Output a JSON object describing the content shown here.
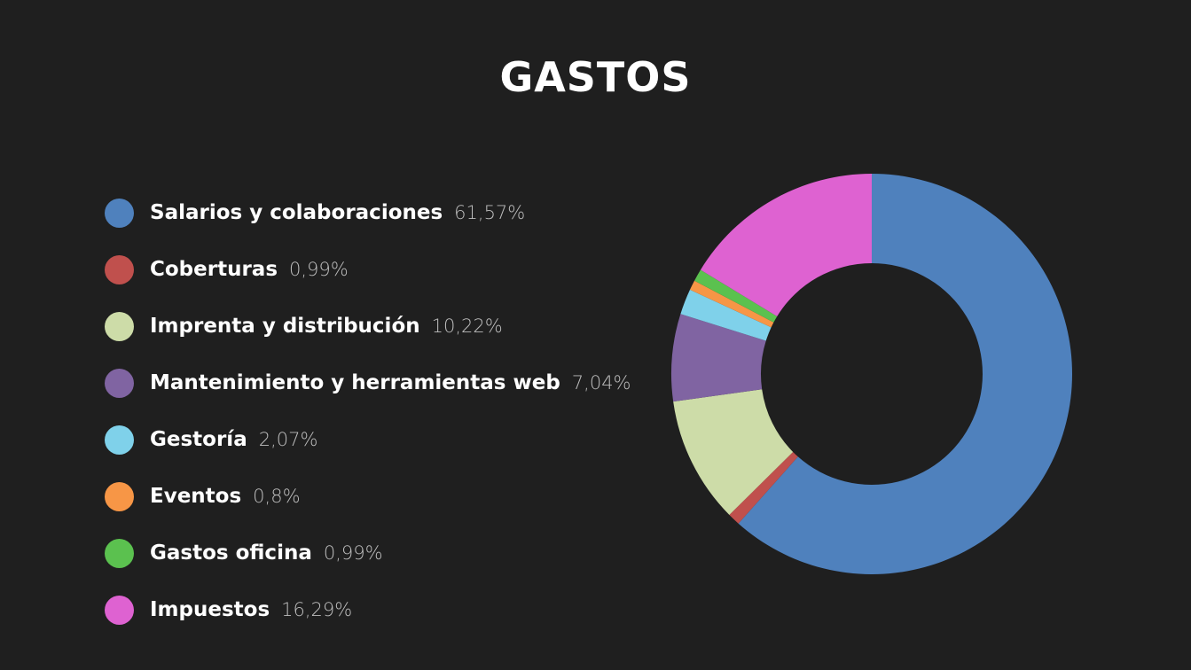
{
  "chart_data": {
    "type": "pie",
    "title": "GASTOS",
    "donut": true,
    "legend_position": "left",
    "slices": [
      {
        "label": "Salarios y colaboraciones",
        "value": 61.57,
        "display": "61,57%",
        "color": "#4f81bd"
      },
      {
        "label": "Coberturas",
        "value": 0.99,
        "display": "0,99%",
        "color": "#c0504d"
      },
      {
        "label": "Imprenta y distribución",
        "value": 10.22,
        "display": "10,22%",
        "color": "#cddca8"
      },
      {
        "label": "Mantenimiento y herramientas web",
        "value": 7.04,
        "display": "7,04%",
        "color": "#8064a2"
      },
      {
        "label": "Gestoría",
        "value": 2.07,
        "display": "2,07%",
        "color": "#7fd1ea"
      },
      {
        "label": "Eventos",
        "value": 0.8,
        "display": "0,8%",
        "color": "#f79646"
      },
      {
        "label": "Gastos oficina",
        "value": 0.99,
        "display": "0,99%",
        "color": "#5bc14f"
      },
      {
        "label": "Impuestos",
        "value": 16.29,
        "display": "16,29%",
        "color": "#de62d1"
      }
    ]
  }
}
